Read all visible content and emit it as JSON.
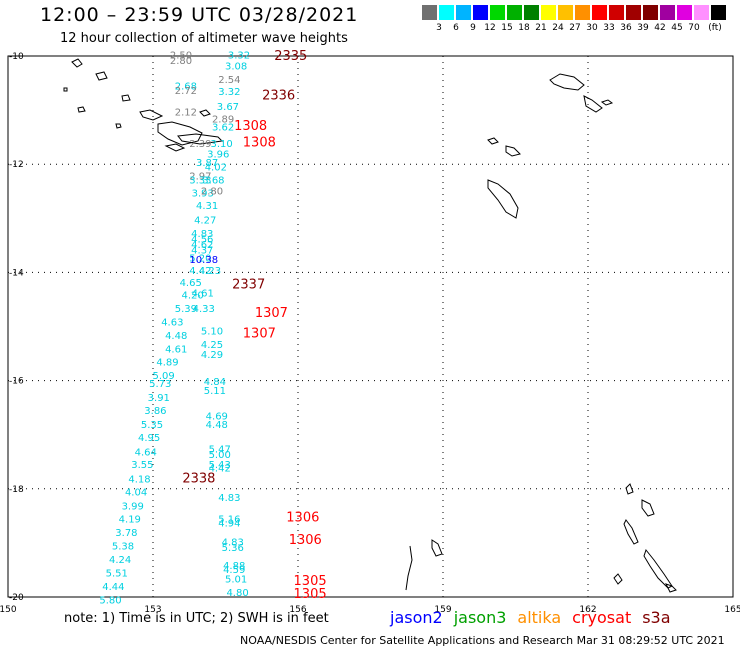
{
  "header": {
    "title": "12:00 – 23:59 UTC 03/28/2021",
    "subtitle": "12 hour collection of altimeter wave heights"
  },
  "colorscale": {
    "colors": [
      "#707070",
      "#00ffff",
      "#00b4ff",
      "#0000ff",
      "#00d800",
      "#00b000",
      "#008000",
      "#ffff00",
      "#ffc000",
      "#ff9000",
      "#ff0000",
      "#d00000",
      "#a00000",
      "#800000",
      "#a000a0",
      "#e000e0",
      "#ff90ff",
      "#000000"
    ],
    "ticks": [
      "3",
      "6",
      "9",
      "12",
      "15",
      "18",
      "21",
      "24",
      "27",
      "30",
      "33",
      "36",
      "39",
      "42",
      "45",
      "70"
    ],
    "unit": "(ft)"
  },
  "map": {
    "lon_ticks": [
      "150",
      "153",
      "156",
      "159",
      "162",
      "165"
    ],
    "lat_ticks": [
      "-10",
      "-12",
      "-14",
      "-16",
      "-18",
      "-20"
    ],
    "point_colors": {
      "cyan": "#00d0e0",
      "gray": "#808080",
      "blue": "#0000ff",
      "red": "#ff0000",
      "maroon": "#800000"
    },
    "swh_points": [
      {
        "t": "2.50",
        "lon": 153.58,
        "lat": -10.05,
        "c": "gray"
      },
      {
        "t": "2.80",
        "lon": 153.58,
        "lat": -10.15,
        "c": "gray"
      },
      {
        "t": "3.32",
        "lon": 154.78,
        "lat": -10.05,
        "c": "cyan"
      },
      {
        "t": "3.08",
        "lon": 154.72,
        "lat": -10.25,
        "c": "cyan"
      },
      {
        "t": "2.54",
        "lon": 154.58,
        "lat": -10.5,
        "c": "gray"
      },
      {
        "t": "2.68",
        "lon": 153.68,
        "lat": -10.62,
        "c": "cyan"
      },
      {
        "t": "2.72",
        "lon": 153.68,
        "lat": -10.7,
        "c": "gray"
      },
      {
        "t": "3.32",
        "lon": 154.58,
        "lat": -10.72,
        "c": "cyan"
      },
      {
        "t": "3.67",
        "lon": 154.55,
        "lat": -11.0,
        "c": "cyan"
      },
      {
        "t": "2.12",
        "lon": 153.68,
        "lat": -11.1,
        "c": "gray"
      },
      {
        "t": "2.89",
        "lon": 154.45,
        "lat": -11.23,
        "c": "gray"
      },
      {
        "t": "3.62",
        "lon": 154.45,
        "lat": -11.38,
        "c": "cyan"
      },
      {
        "t": "2.39",
        "lon": 153.98,
        "lat": -11.68,
        "c": "gray"
      },
      {
        "t": "3.10",
        "lon": 154.42,
        "lat": -11.68,
        "c": "cyan"
      },
      {
        "t": "3.96",
        "lon": 154.35,
        "lat": -11.88,
        "c": "cyan"
      },
      {
        "t": "3.87",
        "lon": 154.12,
        "lat": -12.03,
        "c": "cyan"
      },
      {
        "t": "4.02",
        "lon": 154.3,
        "lat": -12.12,
        "c": "cyan"
      },
      {
        "t": "2.97",
        "lon": 153.98,
        "lat": -12.28,
        "c": "gray"
      },
      {
        "t": "3.33",
        "lon": 153.98,
        "lat": -12.36,
        "c": "cyan"
      },
      {
        "t": "3.68",
        "lon": 154.25,
        "lat": -12.36,
        "c": "cyan"
      },
      {
        "t": "3.93",
        "lon": 154.03,
        "lat": -12.6,
        "c": "cyan"
      },
      {
        "t": "2.80",
        "lon": 154.22,
        "lat": -12.56,
        "c": "gray"
      },
      {
        "t": "4.31",
        "lon": 154.12,
        "lat": -12.83,
        "c": "cyan"
      },
      {
        "t": "4.27",
        "lon": 154.08,
        "lat": -13.1,
        "c": "cyan"
      },
      {
        "t": "4.83",
        "lon": 154.02,
        "lat": -13.35,
        "c": "cyan"
      },
      {
        "t": "4.56",
        "lon": 154.02,
        "lat": -13.45,
        "c": "cyan"
      },
      {
        "t": "4.62",
        "lon": 154.02,
        "lat": -13.55,
        "c": "cyan"
      },
      {
        "t": "4.37",
        "lon": 154.02,
        "lat": -13.65,
        "c": "cyan"
      },
      {
        "t": "5.20",
        "lon": 153.98,
        "lat": -13.8,
        "c": "cyan"
      },
      {
        "t": "10.38",
        "lon": 154.05,
        "lat": -13.83,
        "c": "blue"
      },
      {
        "t": "4.42",
        "lon": 153.98,
        "lat": -14.03,
        "c": "cyan"
      },
      {
        "t": "4.23",
        "lon": 154.18,
        "lat": -14.03,
        "c": "cyan"
      },
      {
        "t": "4.65",
        "lon": 153.78,
        "lat": -14.25,
        "c": "cyan"
      },
      {
        "t": "4.20",
        "lon": 153.82,
        "lat": -14.48,
        "c": "cyan"
      },
      {
        "t": "4.61",
        "lon": 154.03,
        "lat": -14.45,
        "c": "cyan"
      },
      {
        "t": "5.39",
        "lon": 153.68,
        "lat": -14.73,
        "c": "cyan"
      },
      {
        "t": "4.33",
        "lon": 154.05,
        "lat": -14.73,
        "c": "cyan"
      },
      {
        "t": "4.63",
        "lon": 153.4,
        "lat": -14.98,
        "c": "cyan"
      },
      {
        "t": "5.10",
        "lon": 154.22,
        "lat": -15.15,
        "c": "cyan"
      },
      {
        "t": "4.48",
        "lon": 153.48,
        "lat": -15.23,
        "c": "cyan"
      },
      {
        "t": "4.25",
        "lon": 154.22,
        "lat": -15.4,
        "c": "cyan"
      },
      {
        "t": "4.61",
        "lon": 153.48,
        "lat": -15.48,
        "c": "cyan"
      },
      {
        "t": "4.29",
        "lon": 154.22,
        "lat": -15.58,
        "c": "cyan"
      },
      {
        "t": "4.89",
        "lon": 153.3,
        "lat": -15.72,
        "c": "cyan"
      },
      {
        "t": "5.09",
        "lon": 153.22,
        "lat": -15.97,
        "c": "cyan"
      },
      {
        "t": "4.84",
        "lon": 154.28,
        "lat": -16.08,
        "c": "cyan"
      },
      {
        "t": "5.73",
        "lon": 153.15,
        "lat": -16.12,
        "c": "cyan"
      },
      {
        "t": "5.11",
        "lon": 154.28,
        "lat": -16.25,
        "c": "cyan"
      },
      {
        "t": "3.91",
        "lon": 153.12,
        "lat": -16.38,
        "c": "cyan"
      },
      {
        "t": "3.86",
        "lon": 153.05,
        "lat": -16.62,
        "c": "cyan"
      },
      {
        "t": "4.69",
        "lon": 154.32,
        "lat": -16.72,
        "c": "cyan"
      },
      {
        "t": "5.35",
        "lon": 152.98,
        "lat": -16.88,
        "c": "cyan"
      },
      {
        "t": "4.48",
        "lon": 154.32,
        "lat": -16.88,
        "c": "cyan"
      },
      {
        "t": "4.95",
        "lon": 152.92,
        "lat": -17.12,
        "c": "cyan"
      },
      {
        "t": "5.47",
        "lon": 154.38,
        "lat": -17.33,
        "c": "cyan"
      },
      {
        "t": "4.64",
        "lon": 152.85,
        "lat": -17.38,
        "c": "cyan"
      },
      {
        "t": "5.00",
        "lon": 154.38,
        "lat": -17.43,
        "c": "cyan"
      },
      {
        "t": "5.43",
        "lon": 154.38,
        "lat": -17.62,
        "c": "cyan"
      },
      {
        "t": "4.42",
        "lon": 154.38,
        "lat": -17.68,
        "c": "cyan"
      },
      {
        "t": "3.55",
        "lon": 152.78,
        "lat": -17.62,
        "c": "cyan"
      },
      {
        "t": "4.18",
        "lon": 152.72,
        "lat": -17.88,
        "c": "cyan"
      },
      {
        "t": "4.04",
        "lon": 152.65,
        "lat": -18.12,
        "c": "cyan"
      },
      {
        "t": "4.83",
        "lon": 154.58,
        "lat": -18.23,
        "c": "cyan"
      },
      {
        "t": "3.99",
        "lon": 152.58,
        "lat": -18.38,
        "c": "cyan"
      },
      {
        "t": "4.19",
        "lon": 152.52,
        "lat": -18.62,
        "c": "cyan"
      },
      {
        "t": "5.16",
        "lon": 154.58,
        "lat": -18.62,
        "c": "cyan"
      },
      {
        "t": "4.94",
        "lon": 154.58,
        "lat": -18.7,
        "c": "cyan"
      },
      {
        "t": "3.78",
        "lon": 152.45,
        "lat": -18.87,
        "c": "cyan"
      },
      {
        "t": "5.38",
        "lon": 152.38,
        "lat": -19.12,
        "c": "cyan"
      },
      {
        "t": "4.83",
        "lon": 154.65,
        "lat": -19.05,
        "c": "cyan"
      },
      {
        "t": "5.36",
        "lon": 154.65,
        "lat": -19.15,
        "c": "cyan"
      },
      {
        "t": "4.24",
        "lon": 152.32,
        "lat": -19.37,
        "c": "cyan"
      },
      {
        "t": "4.88",
        "lon": 154.68,
        "lat": -19.48,
        "c": "cyan"
      },
      {
        "t": "4.59",
        "lon": 154.68,
        "lat": -19.56,
        "c": "cyan"
      },
      {
        "t": "5.51",
        "lon": 152.25,
        "lat": -19.62,
        "c": "cyan"
      },
      {
        "t": "5.01",
        "lon": 154.72,
        "lat": -19.73,
        "c": "cyan"
      },
      {
        "t": "4.44",
        "lon": 152.18,
        "lat": -19.87,
        "c": "cyan"
      },
      {
        "t": "4.80",
        "lon": 154.75,
        "lat": -19.98,
        "c": "cyan"
      },
      {
        "t": "5.80",
        "lon": 152.12,
        "lat": -20.12,
        "c": "cyan"
      }
    ],
    "pass_labels": [
      {
        "t": "2335",
        "lon": 155.85,
        "lat": -10.07,
        "c": "maroon"
      },
      {
        "t": "2336",
        "lon": 155.6,
        "lat": -10.8,
        "c": "maroon"
      },
      {
        "t": "1308",
        "lon": 155.02,
        "lat": -11.37,
        "c": "red"
      },
      {
        "t": "1308",
        "lon": 155.2,
        "lat": -11.67,
        "c": "red"
      },
      {
        "t": "2337",
        "lon": 154.98,
        "lat": -14.3,
        "c": "maroon"
      },
      {
        "t": "1307",
        "lon": 155.45,
        "lat": -14.82,
        "c": "red"
      },
      {
        "t": "1307",
        "lon": 155.2,
        "lat": -15.2,
        "c": "red"
      },
      {
        "t": "2338",
        "lon": 153.95,
        "lat": -17.88,
        "c": "maroon"
      },
      {
        "t": "1306",
        "lon": 156.1,
        "lat": -18.6,
        "c": "red"
      },
      {
        "t": "1306",
        "lon": 156.15,
        "lat": -19.02,
        "c": "red"
      },
      {
        "t": "1305",
        "lon": 156.25,
        "lat": -19.78,
        "c": "red"
      },
      {
        "t": "1305",
        "lon": 156.25,
        "lat": -20.02,
        "c": "red"
      }
    ]
  },
  "note": "note: 1) Time is in UTC; 2) SWH is in feet",
  "legend": [
    {
      "label": "jason2",
      "color": "#0000ff"
    },
    {
      "label": "jason3",
      "color": "#00a000"
    },
    {
      "label": "altika",
      "color": "#ff9000"
    },
    {
      "label": "cryosat",
      "color": "#ff0000"
    },
    {
      "label": "s3a",
      "color": "#800000"
    }
  ],
  "footer": "NOAA/NESDIS Center for Satellite Applications and Research     Mar 31 08:29:52 UTC 2021"
}
